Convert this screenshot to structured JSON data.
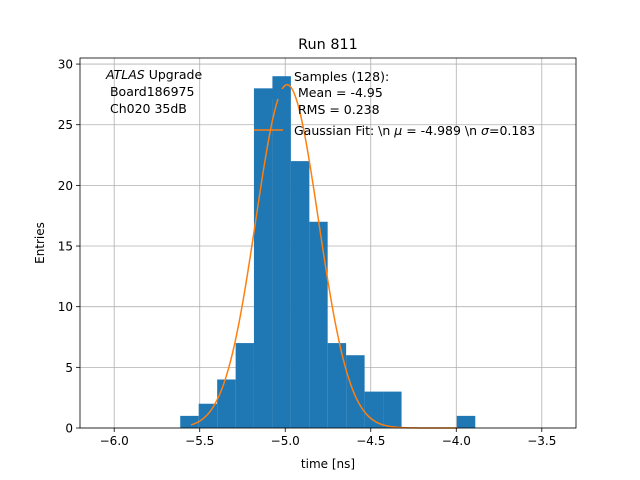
{
  "chart_data": {
    "type": "bar",
    "title": "Run 811",
    "xlabel": "time [ns]",
    "ylabel": "Entries",
    "xlim": [
      -6.2,
      -3.3
    ],
    "ylim": [
      0,
      30.5
    ],
    "xticks": [
      -6.0,
      -5.5,
      -5.0,
      -4.5,
      -4.0,
      -3.5
    ],
    "xtick_labels": [
      "−6.0",
      "−5.5",
      "−5.0",
      "−4.5",
      "−4.0",
      "−3.5"
    ],
    "yticks": [
      0,
      5,
      10,
      15,
      20,
      25,
      30
    ],
    "ytick_labels": [
      "0",
      "5",
      "10",
      "15",
      "20",
      "25",
      "30"
    ],
    "grid": true,
    "annotation": {
      "line1_italic": "ATLAS",
      "line1_rest": " Upgrade",
      "line2": " Board186975",
      "line3": " Ch020 35dB"
    },
    "legend": {
      "placement": "top-right",
      "hist_label_lines": [
        "Samples (128):",
        " Mean = -4.95",
        " RMS = 0.238"
      ],
      "fit_label_parts": [
        "Gaussian Fit: \\n ",
        "μ",
        " = -4.989 \\n ",
        "σ",
        "=0.183"
      ]
    },
    "histogram": {
      "name": "Samples (128):",
      "color": "#1f77b4",
      "bins": [
        {
          "x0": -5.614,
          "x1": -5.506,
          "count": 1
        },
        {
          "x0": -5.506,
          "x1": -5.398,
          "count": 2
        },
        {
          "x0": -5.398,
          "x1": -5.29,
          "count": 4
        },
        {
          "x0": -5.29,
          "x1": -5.183,
          "count": 7
        },
        {
          "x0": -5.183,
          "x1": -5.075,
          "count": 28
        },
        {
          "x0": -5.075,
          "x1": -4.967,
          "count": 29
        },
        {
          "x0": -4.967,
          "x1": -4.859,
          "count": 22
        },
        {
          "x0": -4.859,
          "x1": -4.752,
          "count": 17
        },
        {
          "x0": -4.752,
          "x1": -4.644,
          "count": 7
        },
        {
          "x0": -4.644,
          "x1": -4.536,
          "count": 6
        },
        {
          "x0": -4.536,
          "x1": -4.428,
          "count": 3
        },
        {
          "x0": -4.428,
          "x1": -4.32,
          "count": 3
        },
        {
          "x0": -4.32,
          "x1": -4.213,
          "count": 0
        },
        {
          "x0": -4.213,
          "x1": -4.105,
          "count": 0
        },
        {
          "x0": -4.105,
          "x1": -3.997,
          "count": 0
        },
        {
          "x0": -3.997,
          "x1": -3.889,
          "count": 1
        }
      ]
    },
    "fit": {
      "name": "Gaussian Fit",
      "color": "#ff7f0e",
      "mu": -4.989,
      "sigma": 0.183,
      "amplitude": 28.3,
      "x_range": [
        -5.55,
        -3.99
      ]
    }
  }
}
